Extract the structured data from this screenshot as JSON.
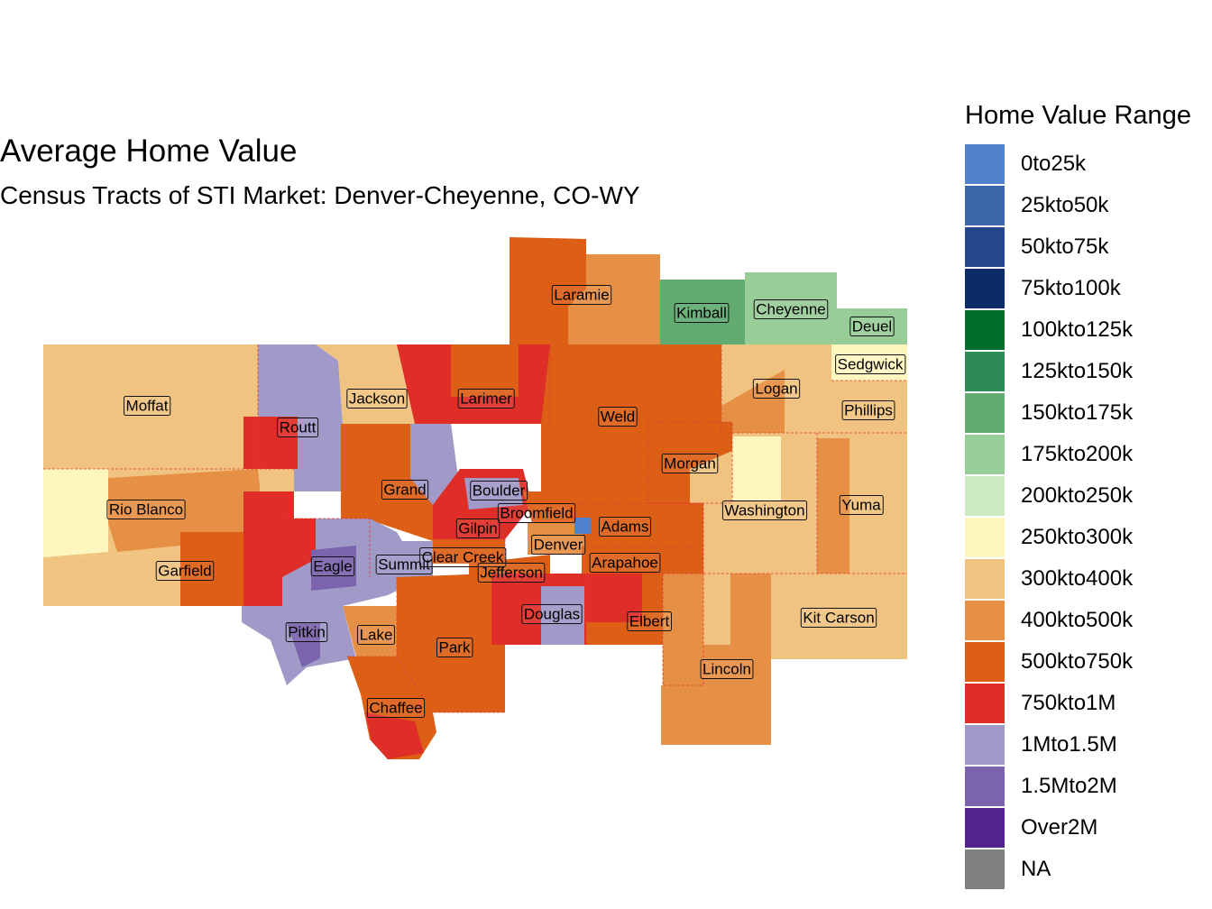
{
  "title": "Average Home Value",
  "subtitle": "Census Tracts of STI Market: Denver-Cheyenne, CO-WY",
  "legend": {
    "title": "Home Value Range",
    "items": [
      {
        "label": "0to25k",
        "color": "#5083cc"
      },
      {
        "label": "25kto50k",
        "color": "#3a67a8"
      },
      {
        "label": "50kto75k",
        "color": "#23478a"
      },
      {
        "label": "75kto100k",
        "color": "#0b2b66"
      },
      {
        "label": "100kto125k",
        "color": "#006d2c"
      },
      {
        "label": "125kto150k",
        "color": "#2e8b57"
      },
      {
        "label": "150kto175k",
        "color": "#61ab71"
      },
      {
        "label": "175kto200k",
        "color": "#99cd98"
      },
      {
        "label": "200kto250k",
        "color": "#cbe9c3"
      },
      {
        "label": "250kto300k",
        "color": "#fef6bf"
      },
      {
        "label": "300kto400k",
        "color": "#f0c480"
      },
      {
        "label": "400kto500k",
        "color": "#e69045"
      },
      {
        "label": "500kto750k",
        "color": "#dc5f15"
      },
      {
        "label": "750kto1M",
        "color": "#df2e28"
      },
      {
        "label": "1Mto1.5M",
        "color": "#9f9ac8"
      },
      {
        "label": "1.5Mto2M",
        "color": "#7b63ad"
      },
      {
        "label": "Over2M",
        "color": "#53238f"
      },
      {
        "label": "NA",
        "color": "#808080"
      }
    ]
  },
  "counties": [
    {
      "name": "Laramie",
      "range": "500kto750k"
    },
    {
      "name": "Kimball",
      "range": "150kto175k"
    },
    {
      "name": "Cheyenne",
      "range": "175kto200k"
    },
    {
      "name": "Deuel",
      "range": "175kto200k"
    },
    {
      "name": "Sedgwick",
      "range": "250kto300k"
    },
    {
      "name": "Moffat",
      "range": "300kto400k"
    },
    {
      "name": "Jackson",
      "range": "300kto400k"
    },
    {
      "name": "Larimer",
      "range": "500kto750k"
    },
    {
      "name": "Weld",
      "range": "500kto750k"
    },
    {
      "name": "Logan",
      "range": "300kto400k"
    },
    {
      "name": "Phillips",
      "range": "300kto400k"
    },
    {
      "name": "Routt",
      "range": "1Mto1.5M"
    },
    {
      "name": "Morgan",
      "range": "500kto750k"
    },
    {
      "name": "Grand",
      "range": "500kto750k"
    },
    {
      "name": "Boulder",
      "range": "750kto1M"
    },
    {
      "name": "Rio Blanco",
      "range": "250kto300k"
    },
    {
      "name": "Broomfield",
      "range": "500kto750k"
    },
    {
      "name": "Washington",
      "range": "300kto400k"
    },
    {
      "name": "Yuma",
      "range": "300kto400k"
    },
    {
      "name": "Adams",
      "range": "500kto750k"
    },
    {
      "name": "Gilpin",
      "range": "500kto750k"
    },
    {
      "name": "Denver",
      "range": "500kto750k"
    },
    {
      "name": "Garfield",
      "range": "300kto400k"
    },
    {
      "name": "Eagle",
      "range": "1Mto1.5M"
    },
    {
      "name": "Summit",
      "range": "1Mto1.5M"
    },
    {
      "name": "Clear Creek",
      "range": "500kto750k"
    },
    {
      "name": "Arapahoe",
      "range": "500kto750k"
    },
    {
      "name": "Jefferson",
      "range": "500kto750k"
    },
    {
      "name": "Kit Carson",
      "range": "300kto400k"
    },
    {
      "name": "Douglas",
      "range": "750kto1M"
    },
    {
      "name": "Elbert",
      "range": "500kto750k"
    },
    {
      "name": "Pitkin",
      "range": "1Mto1.5M"
    },
    {
      "name": "Lake",
      "range": "400kto500k"
    },
    {
      "name": "Park",
      "range": "500kto750k"
    },
    {
      "name": "Lincoln",
      "range": "400kto500k"
    },
    {
      "name": "Chaffee",
      "range": "500kto750k"
    }
  ]
}
